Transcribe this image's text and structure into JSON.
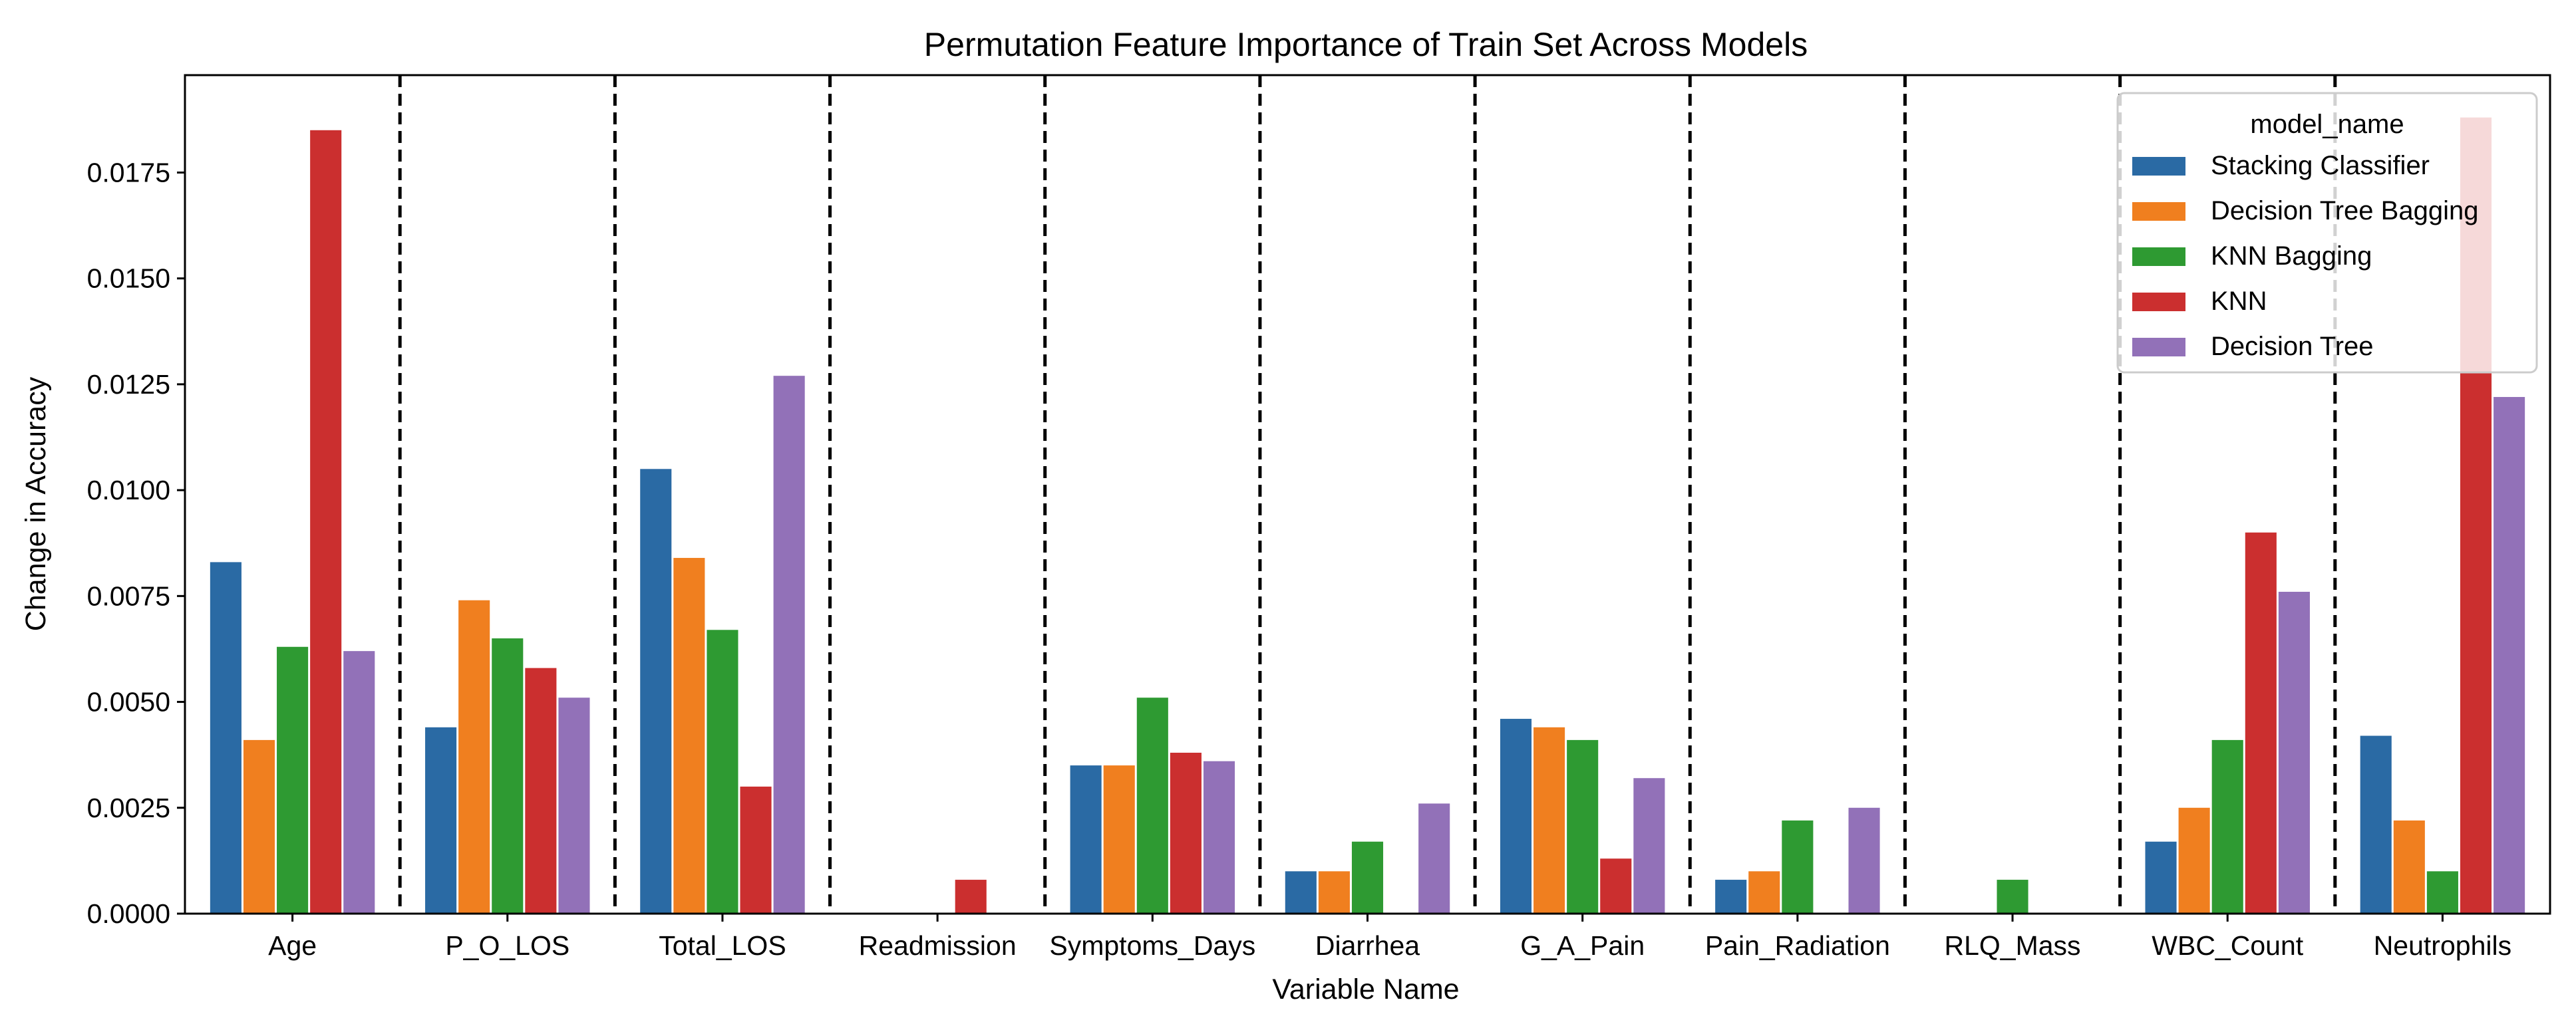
{
  "chart_data": {
    "type": "bar",
    "title": "Permutation Feature Importance of Train Set Across Models",
    "xlabel": "Variable Name",
    "ylabel": "Change in Accuracy",
    "ylim": [
      0,
      0.0198
    ],
    "yticks": [
      "0.0000",
      "0.0025",
      "0.0050",
      "0.0075",
      "0.0100",
      "0.0125",
      "0.0150",
      "0.0175"
    ],
    "categories": [
      "Age",
      "P_O_LOS",
      "Total_LOS",
      "Readmission",
      "Symptoms_Days",
      "Diarrhea",
      "G_A_Pain",
      "Pain_Radiation",
      "RLQ_Mass",
      "WBC_Count",
      "Neutrophils"
    ],
    "legend": {
      "title": "model_name",
      "placement": "top-right"
    },
    "category_separators": "dashed",
    "series": [
      {
        "name": "Stacking Classifier",
        "color": "#2a6aa4",
        "values": [
          0.0083,
          0.0044,
          0.0105,
          0.0,
          0.0035,
          0.001,
          0.0046,
          0.0008,
          0.0,
          0.0017,
          0.0042
        ]
      },
      {
        "name": "Decision Tree Bagging",
        "color": "#f07f1f",
        "values": [
          0.0041,
          0.0074,
          0.0084,
          0.0,
          0.0035,
          0.001,
          0.0044,
          0.001,
          0.0,
          0.0025,
          0.0022
        ]
      },
      {
        "name": "KNN Bagging",
        "color": "#2e9a32",
        "values": [
          0.0063,
          0.0065,
          0.0067,
          0.0,
          0.0051,
          0.0017,
          0.0041,
          0.0022,
          0.0008,
          0.0041,
          0.001
        ]
      },
      {
        "name": "KNN",
        "color": "#cb2f2f",
        "values": [
          0.0185,
          0.0058,
          0.003,
          0.0008,
          0.0038,
          0.0,
          0.0013,
          0.0,
          0.0,
          0.009,
          0.0188
        ]
      },
      {
        "name": "Decision Tree",
        "color": "#9271b8",
        "values": [
          0.0062,
          0.0051,
          0.0127,
          0.0,
          0.0036,
          0.0026,
          0.0032,
          0.0025,
          0.0,
          0.0076,
          0.0122
        ]
      }
    ]
  }
}
